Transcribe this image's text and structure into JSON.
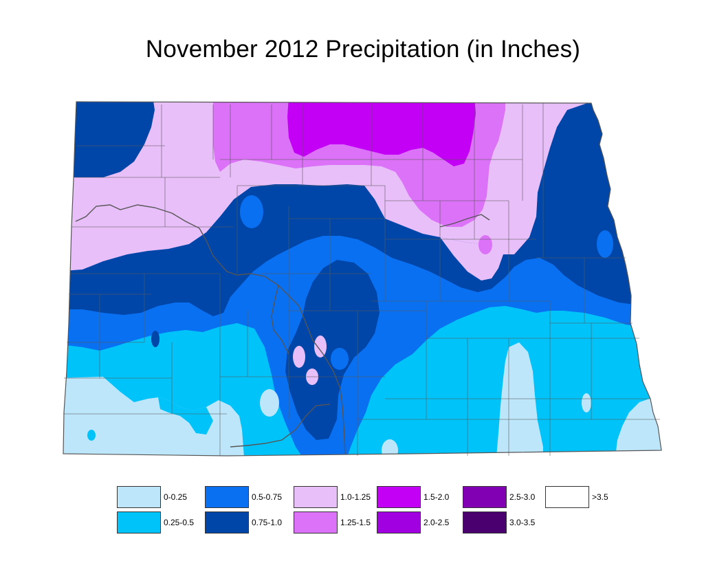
{
  "title": "November 2012 Precipitation (in Inches)",
  "legend": [
    {
      "label": "0-0.25",
      "color": "#bde6fb"
    },
    {
      "label": "0.25-0.5",
      "color": "#00c3fa"
    },
    {
      "label": "0.5-0.75",
      "color": "#0a70f2"
    },
    {
      "label": "0.75-1.0",
      "color": "#0046a8"
    },
    {
      "label": "1.0-1.25",
      "color": "#e9bffa"
    },
    {
      "label": "1.25-1.5",
      "color": "#dc72f8"
    },
    {
      "label": "1.5-2.0",
      "color": "#c300f5"
    },
    {
      "label": "2.0-2.5",
      "color": "#a100e0"
    },
    {
      "label": "2.5-3.0",
      "color": "#8200b4"
    },
    {
      "label": "3.0-3.5",
      "color": "#4a006f"
    },
    {
      "label": ">3.5",
      "color": "#ffffff"
    }
  ]
}
